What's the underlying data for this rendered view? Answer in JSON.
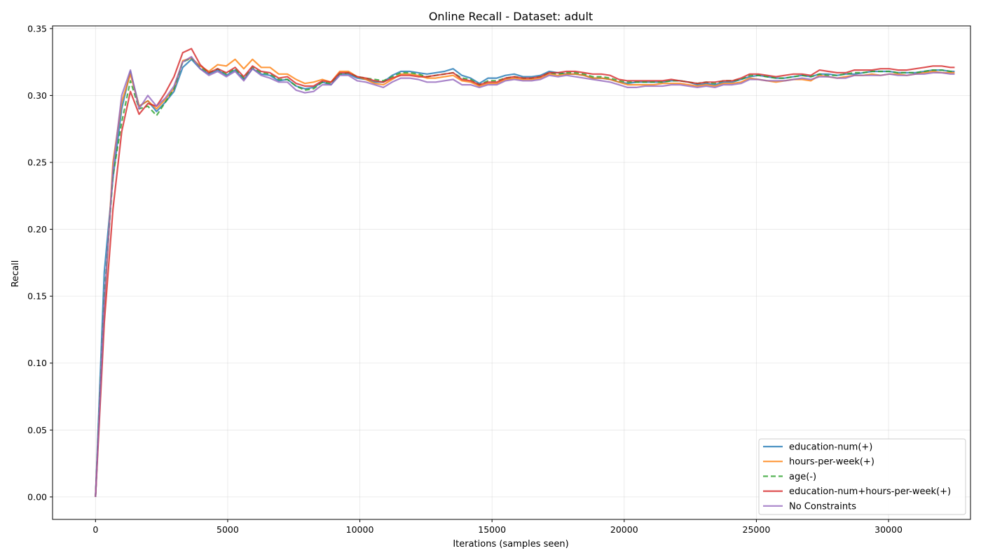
{
  "chart_data": {
    "type": "line",
    "title": "Online Recall - Dataset: adult",
    "xlabel": "Iterations (samples seen)",
    "ylabel": "Recall",
    "xlim": [
      -1625,
      33100
    ],
    "ylim": [
      -0.0168,
      0.352
    ],
    "x_ticks": [
      0,
      5000,
      10000,
      15000,
      20000,
      25000,
      30000
    ],
    "y_ticks": [
      0.0,
      0.05,
      0.1,
      0.15,
      0.2,
      0.25,
      0.3,
      0.35
    ],
    "grid": true,
    "legend_position": "bottom-right",
    "x": [
      0,
      330,
      660,
      990,
      1320,
      1650,
      1980,
      2310,
      2640,
      2970,
      3300,
      3630,
      3960,
      4290,
      4620,
      4950,
      5280,
      5610,
      5940,
      6270,
      6600,
      6930,
      7260,
      7590,
      7920,
      8250,
      8580,
      8910,
      9240,
      9570,
      9900,
      10230,
      10560,
      10890,
      11220,
      11550,
      11880,
      12210,
      12540,
      12870,
      13200,
      13530,
      13860,
      14190,
      14520,
      14850,
      15180,
      15510,
      15840,
      16170,
      16500,
      16830,
      17160,
      17490,
      17820,
      18150,
      18480,
      18810,
      19140,
      19470,
      19800,
      20130,
      20460,
      20790,
      21120,
      21450,
      21780,
      22110,
      22440,
      22770,
      23100,
      23430,
      23760,
      24090,
      24420,
      24750,
      25080,
      25410,
      25740,
      26070,
      26400,
      26730,
      27060,
      27390,
      27720,
      28050,
      28380,
      28710,
      29040,
      29370,
      29700,
      30030,
      30360,
      30690,
      31020,
      31350,
      31680,
      32010,
      32340,
      32500
    ],
    "series": [
      {
        "name": "education-num(+)",
        "color": "#1f77b4",
        "dash": "solid",
        "values": [
          0.0,
          0.168,
          0.238,
          0.29,
          0.318,
          0.292,
          0.296,
          0.288,
          0.295,
          0.303,
          0.321,
          0.327,
          0.32,
          0.316,
          0.319,
          0.315,
          0.319,
          0.312,
          0.32,
          0.316,
          0.315,
          0.311,
          0.312,
          0.307,
          0.305,
          0.306,
          0.31,
          0.308,
          0.316,
          0.316,
          0.313,
          0.312,
          0.31,
          0.31,
          0.315,
          0.318,
          0.318,
          0.317,
          0.316,
          0.317,
          0.318,
          0.32,
          0.315,
          0.313,
          0.309,
          0.313,
          0.313,
          0.315,
          0.316,
          0.314,
          0.314,
          0.315,
          0.318,
          0.317,
          0.316,
          0.316,
          0.315,
          0.313,
          0.313,
          0.312,
          0.31,
          0.309,
          0.31,
          0.31,
          0.31,
          0.31,
          0.311,
          0.311,
          0.31,
          0.308,
          0.309,
          0.308,
          0.31,
          0.31,
          0.312,
          0.314,
          0.315,
          0.314,
          0.313,
          0.313,
          0.314,
          0.315,
          0.314,
          0.316,
          0.316,
          0.315,
          0.316,
          0.316,
          0.317,
          0.318,
          0.318,
          0.318,
          0.317,
          0.317,
          0.317,
          0.318,
          0.319,
          0.319,
          0.318,
          0.318
        ]
      },
      {
        "name": "hours-per-week(+)",
        "color": "#ff7f0e",
        "dash": "solid",
        "values": [
          0.0,
          0.14,
          0.25,
          0.295,
          0.316,
          0.292,
          0.296,
          0.29,
          0.297,
          0.305,
          0.326,
          0.328,
          0.322,
          0.318,
          0.323,
          0.322,
          0.327,
          0.32,
          0.327,
          0.321,
          0.321,
          0.316,
          0.316,
          0.312,
          0.309,
          0.31,
          0.312,
          0.31,
          0.318,
          0.318,
          0.314,
          0.312,
          0.309,
          0.308,
          0.312,
          0.316,
          0.316,
          0.315,
          0.313,
          0.313,
          0.314,
          0.315,
          0.311,
          0.31,
          0.307,
          0.309,
          0.309,
          0.312,
          0.313,
          0.312,
          0.312,
          0.313,
          0.316,
          0.315,
          0.316,
          0.316,
          0.315,
          0.313,
          0.313,
          0.312,
          0.31,
          0.308,
          0.308,
          0.308,
          0.308,
          0.309,
          0.309,
          0.309,
          0.308,
          0.307,
          0.308,
          0.307,
          0.309,
          0.309,
          0.31,
          0.313,
          0.312,
          0.311,
          0.31,
          0.311,
          0.312,
          0.312,
          0.311,
          0.315,
          0.314,
          0.313,
          0.314,
          0.315,
          0.315,
          0.316,
          0.315,
          0.316,
          0.316,
          0.315,
          0.316,
          0.317,
          0.318,
          0.317,
          0.317,
          0.317
        ]
      },
      {
        "name": "age(-)",
        "color": "#2ca02c",
        "dash": "dashed",
        "values": [
          0.0,
          0.15,
          0.24,
          0.28,
          0.311,
          0.29,
          0.292,
          0.285,
          0.295,
          0.305,
          0.325,
          0.328,
          0.321,
          0.317,
          0.32,
          0.316,
          0.32,
          0.313,
          0.321,
          0.317,
          0.316,
          0.312,
          0.312,
          0.307,
          0.304,
          0.305,
          0.31,
          0.309,
          0.316,
          0.317,
          0.314,
          0.313,
          0.312,
          0.311,
          0.314,
          0.317,
          0.317,
          0.316,
          0.314,
          0.315,
          0.316,
          0.317,
          0.313,
          0.312,
          0.308,
          0.311,
          0.311,
          0.313,
          0.314,
          0.313,
          0.313,
          0.314,
          0.317,
          0.316,
          0.317,
          0.317,
          0.316,
          0.314,
          0.314,
          0.313,
          0.311,
          0.31,
          0.31,
          0.31,
          0.31,
          0.31,
          0.311,
          0.311,
          0.31,
          0.309,
          0.31,
          0.309,
          0.311,
          0.311,
          0.312,
          0.315,
          0.315,
          0.314,
          0.313,
          0.313,
          0.314,
          0.315,
          0.314,
          0.316,
          0.315,
          0.315,
          0.316,
          0.317,
          0.317,
          0.318,
          0.318,
          0.318,
          0.317,
          0.317,
          0.317,
          0.318,
          0.319,
          0.319,
          0.318,
          0.318
        ]
      },
      {
        "name": "education-num+hours-per-week(+)",
        "color": "#d62728",
        "dash": "solid",
        "values": [
          0.0,
          0.13,
          0.215,
          0.273,
          0.303,
          0.286,
          0.294,
          0.292,
          0.302,
          0.314,
          0.332,
          0.335,
          0.323,
          0.317,
          0.32,
          0.317,
          0.321,
          0.314,
          0.322,
          0.318,
          0.317,
          0.313,
          0.314,
          0.309,
          0.307,
          0.307,
          0.311,
          0.31,
          0.317,
          0.317,
          0.314,
          0.313,
          0.311,
          0.31,
          0.313,
          0.315,
          0.315,
          0.314,
          0.314,
          0.315,
          0.316,
          0.317,
          0.312,
          0.311,
          0.308,
          0.31,
          0.31,
          0.313,
          0.314,
          0.313,
          0.313,
          0.314,
          0.317,
          0.317,
          0.318,
          0.318,
          0.317,
          0.316,
          0.316,
          0.315,
          0.312,
          0.311,
          0.311,
          0.311,
          0.311,
          0.311,
          0.312,
          0.311,
          0.31,
          0.309,
          0.31,
          0.31,
          0.311,
          0.311,
          0.313,
          0.316,
          0.316,
          0.315,
          0.314,
          0.315,
          0.316,
          0.316,
          0.315,
          0.319,
          0.318,
          0.317,
          0.317,
          0.319,
          0.319,
          0.319,
          0.32,
          0.32,
          0.319,
          0.319,
          0.32,
          0.321,
          0.322,
          0.322,
          0.321,
          0.321
        ]
      },
      {
        "name": "No Constraints",
        "color": "#9467bd",
        "dash": "solid",
        "values": [
          0.0,
          0.145,
          0.245,
          0.3,
          0.319,
          0.29,
          0.3,
          0.292,
          0.298,
          0.307,
          0.325,
          0.329,
          0.32,
          0.315,
          0.318,
          0.314,
          0.318,
          0.311,
          0.32,
          0.315,
          0.313,
          0.31,
          0.31,
          0.304,
          0.302,
          0.303,
          0.308,
          0.308,
          0.315,
          0.315,
          0.311,
          0.31,
          0.308,
          0.306,
          0.31,
          0.313,
          0.313,
          0.312,
          0.31,
          0.31,
          0.311,
          0.312,
          0.308,
          0.308,
          0.306,
          0.308,
          0.308,
          0.311,
          0.312,
          0.311,
          0.311,
          0.312,
          0.315,
          0.314,
          0.315,
          0.314,
          0.313,
          0.312,
          0.311,
          0.31,
          0.308,
          0.306,
          0.306,
          0.307,
          0.307,
          0.307,
          0.308,
          0.308,
          0.307,
          0.306,
          0.307,
          0.306,
          0.308,
          0.308,
          0.309,
          0.312,
          0.312,
          0.311,
          0.311,
          0.311,
          0.312,
          0.313,
          0.312,
          0.314,
          0.314,
          0.313,
          0.313,
          0.315,
          0.315,
          0.315,
          0.315,
          0.316,
          0.315,
          0.315,
          0.316,
          0.316,
          0.317,
          0.317,
          0.316,
          0.316
        ]
      }
    ]
  }
}
